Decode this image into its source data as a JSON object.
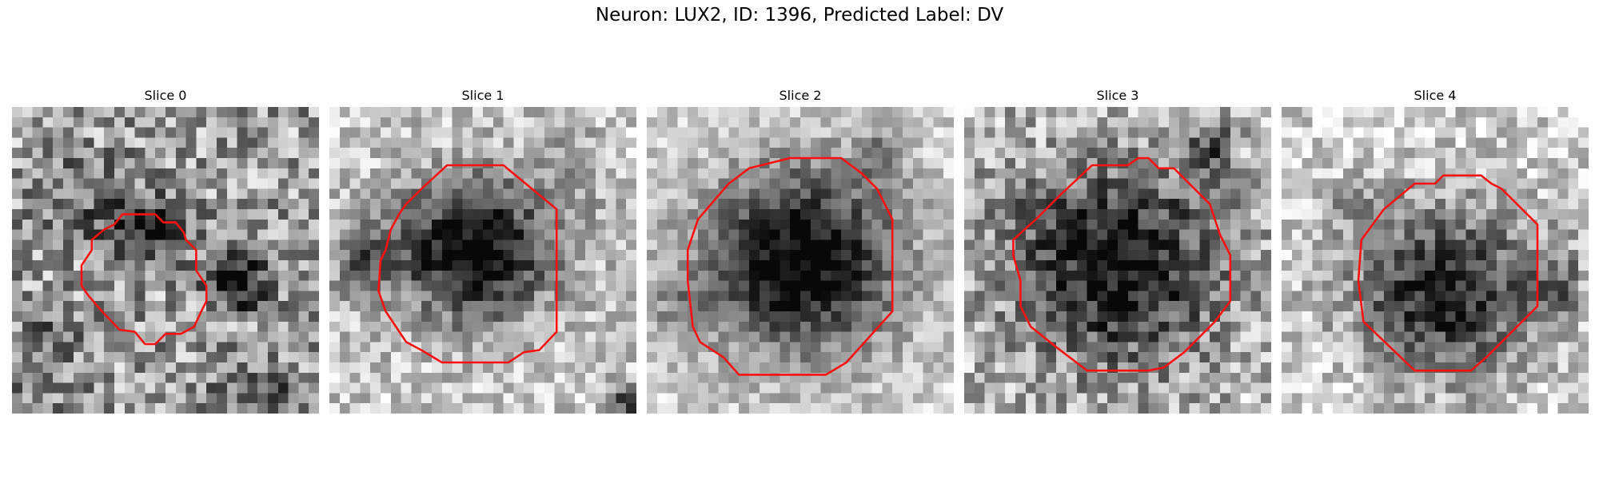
{
  "figure": {
    "title": "Neuron: LUX2, ID: 1396, Predicted Label: DV"
  },
  "colors": {
    "background": "#ffffff",
    "contour": "#ff1010",
    "pixel_dark": "#0a0a0a",
    "pixel_light": "#ffffff"
  },
  "slices": [
    {
      "label": "Slice 0"
    },
    {
      "label": "Slice 1"
    },
    {
      "label": "Slice 2"
    },
    {
      "label": "Slice 3"
    },
    {
      "label": "Slice 4"
    }
  ]
}
